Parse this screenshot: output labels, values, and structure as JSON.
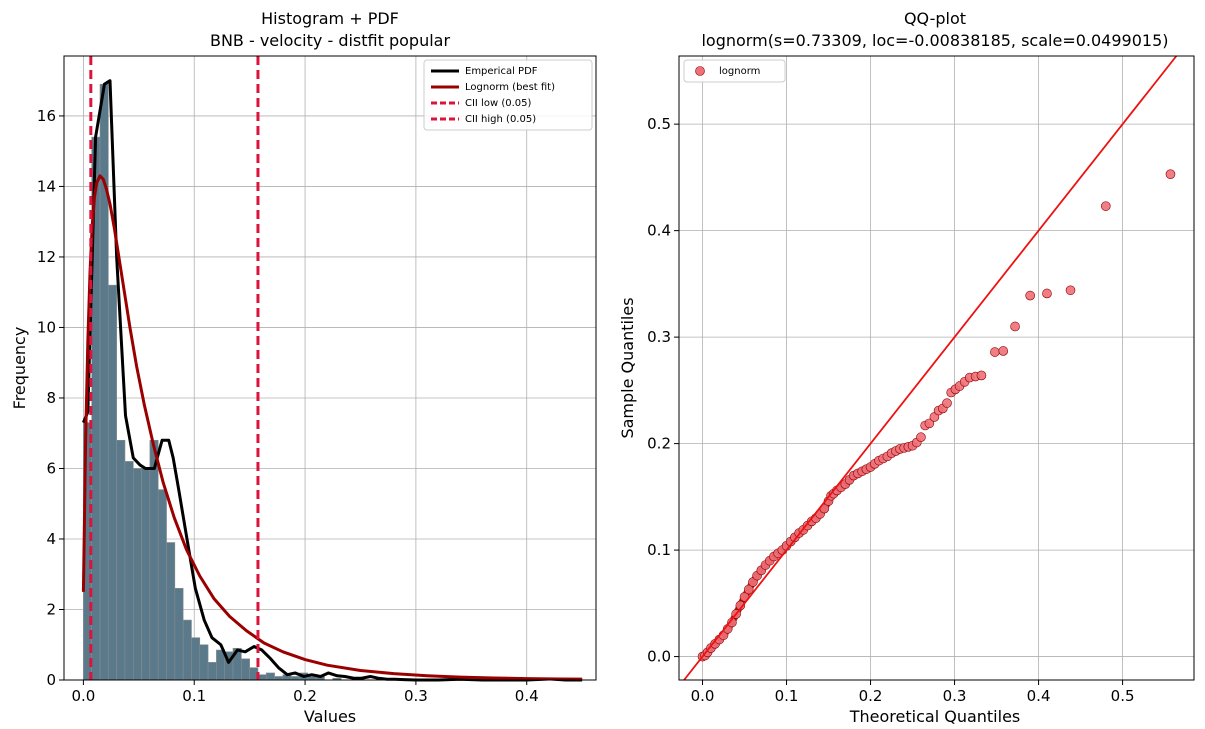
{
  "chart_data": [
    {
      "type": "bar",
      "title": "Histogram + PDF",
      "subtitle": "BNB - velocity - distfit popular",
      "xlabel": "Values",
      "ylabel": "Frequency",
      "xlim": [
        -0.0175,
        0.4625
      ],
      "ylim": [
        0,
        17.7
      ],
      "x_ticks": [
        0.0,
        0.1,
        0.2,
        0.3,
        0.4
      ],
      "x_tick_labels": [
        "0.0",
        "0.1",
        "0.2",
        "0.3",
        "0.4"
      ],
      "y_ticks": [
        0,
        2,
        4,
        6,
        8,
        10,
        12,
        14,
        16
      ],
      "y_tick_labels": [
        "0",
        "2",
        "4",
        "6",
        "8",
        "10",
        "12",
        "14",
        "16"
      ],
      "grid": true,
      "legend_position": "top-right",
      "colors": {
        "histogram_fill": "#5a7a8c",
        "histogram_edge": "#8a8a8a",
        "empirical_pdf": "#000000",
        "lognorm_fit": "#9a0000",
        "cii": "#dc143c"
      },
      "histogram": {
        "bin_width": 0.0075,
        "bin_starts": [
          0.0,
          0.0075,
          0.015,
          0.0225,
          0.03,
          0.0375,
          0.045,
          0.0525,
          0.06,
          0.0675,
          0.075,
          0.0825,
          0.09,
          0.0975,
          0.105,
          0.1125,
          0.12,
          0.1275,
          0.135,
          0.1425,
          0.15,
          0.1575,
          0.165,
          0.1725,
          0.18,
          0.1875,
          0.195,
          0.2025,
          0.21,
          0.2175,
          0.225,
          0.2325,
          0.24,
          0.2475,
          0.255,
          0.2625,
          0.27,
          0.2775,
          0.285,
          0.2925,
          0.3,
          0.3075,
          0.315,
          0.3225,
          0.33,
          0.3375,
          0.345,
          0.3525,
          0.36,
          0.3675,
          0.375,
          0.3825,
          0.39,
          0.3975,
          0.405,
          0.4125,
          0.42,
          0.4275,
          0.435,
          0.4425
        ],
        "values": [
          7.3,
          15.4,
          16.9,
          11.2,
          6.8,
          6.2,
          6.0,
          6.0,
          6.8,
          5.4,
          3.9,
          2.6,
          1.7,
          1.2,
          1.0,
          0.5,
          0.85,
          0.8,
          0.9,
          0.6,
          0.35,
          0.15,
          0.2,
          0.1,
          0.15,
          0.1,
          0.2,
          0.1,
          0.1,
          0.0,
          0.05,
          0.0,
          0.0,
          0.0,
          0.0,
          0.0,
          0.0,
          0.0,
          0.0,
          0.0,
          0.0,
          0.0,
          0.0,
          0.0,
          0.05,
          0.0,
          0.0,
          0.0,
          0.0,
          0.0,
          0.0,
          0.0,
          0.0,
          0.0,
          0.0,
          0.0,
          0.05,
          0.0,
          0.0,
          0.0
        ]
      },
      "series": [
        {
          "name": "Emperical PDF",
          "x": [
            0.0,
            0.004,
            0.011,
            0.019,
            0.024,
            0.03,
            0.038,
            0.045,
            0.051,
            0.056,
            0.064,
            0.071,
            0.077,
            0.081,
            0.086,
            0.094,
            0.101,
            0.109,
            0.116,
            0.124,
            0.131,
            0.139,
            0.146,
            0.154,
            0.161,
            0.169,
            0.176,
            0.184,
            0.191,
            0.199,
            0.206,
            0.214,
            0.221,
            0.229,
            0.236,
            0.244,
            0.251,
            0.259,
            0.266,
            0.274,
            0.281,
            0.289,
            0.3,
            0.32,
            0.34,
            0.36,
            0.38,
            0.4,
            0.42,
            0.435,
            0.45
          ],
          "y": [
            7.3,
            7.6,
            15.4,
            16.9,
            17.0,
            12.0,
            7.5,
            6.3,
            6.1,
            6.0,
            6.0,
            6.8,
            6.8,
            6.3,
            5.4,
            3.9,
            2.6,
            1.7,
            1.2,
            1.0,
            0.5,
            0.85,
            0.8,
            0.95,
            0.85,
            0.6,
            0.35,
            0.15,
            0.2,
            0.1,
            0.15,
            0.1,
            0.2,
            0.12,
            0.1,
            0.05,
            0.05,
            0.1,
            0.05,
            0.02,
            0.02,
            0.01,
            0.0,
            0.0,
            0.02,
            0.0,
            0.0,
            0.0,
            0.03,
            0.0,
            0.0
          ]
        },
        {
          "name": "Lognorm (best fit)",
          "x": [
            0.0,
            0.002,
            0.004,
            0.006,
            0.008,
            0.01,
            0.012,
            0.015,
            0.018,
            0.021,
            0.024,
            0.028,
            0.032,
            0.037,
            0.042,
            0.048,
            0.055,
            0.063,
            0.072,
            0.082,
            0.093,
            0.105,
            0.118,
            0.132,
            0.147,
            0.163,
            0.18,
            0.2,
            0.22,
            0.25,
            0.28,
            0.31,
            0.34,
            0.37,
            0.4,
            0.43,
            0.45
          ],
          "y": [
            2.5,
            6.8,
            9.6,
            11.6,
            12.9,
            13.7,
            14.1,
            14.3,
            14.2,
            13.9,
            13.5,
            12.8,
            12.0,
            11.0,
            10.0,
            8.9,
            7.8,
            6.7,
            5.6,
            4.6,
            3.7,
            2.95,
            2.3,
            1.8,
            1.4,
            1.05,
            0.8,
            0.58,
            0.42,
            0.27,
            0.18,
            0.12,
            0.08,
            0.055,
            0.04,
            0.03,
            0.025
          ]
        },
        {
          "name": "CII low (0.05)",
          "x_value": 0.0067
        },
        {
          "name": "CII high (0.05)",
          "x_value": 0.1575
        }
      ]
    },
    {
      "type": "scatter",
      "title": "QQ-plot",
      "subtitle": "lognorm(s=0.73309, loc=-0.00838185, scale=0.0499015)",
      "xlabel": "Theoretical Quantiles",
      "ylabel": "Sample Quantiles",
      "xlim": [
        -0.028,
        0.585
      ],
      "ylim": [
        -0.022,
        0.564
      ],
      "x_ticks": [
        0.0,
        0.1,
        0.2,
        0.3,
        0.4,
        0.5
      ],
      "x_tick_labels": [
        "0.0",
        "0.1",
        "0.2",
        "0.3",
        "0.4",
        "0.5"
      ],
      "y_ticks": [
        0.0,
        0.1,
        0.2,
        0.3,
        0.4,
        0.5
      ],
      "y_tick_labels": [
        "0.0",
        "0.1",
        "0.2",
        "0.3",
        "0.4",
        "0.5"
      ],
      "grid": true,
      "legend_position": "top-left",
      "colors": {
        "marker_fill": "#f07078",
        "marker_edge": "#8b0000",
        "reference_line": "#ee1111",
        "dense_fill": "#b02020"
      },
      "reference_line": {
        "name": "y = x",
        "slope": 1,
        "intercept": 0
      },
      "series": [
        {
          "name": "lognorm",
          "points": [
            [
              0.0,
              0.0
            ],
            [
              0.003,
              0.001
            ],
            [
              0.006,
              0.004
            ],
            [
              0.01,
              0.008
            ],
            [
              0.015,
              0.012
            ],
            [
              0.02,
              0.016
            ],
            [
              0.025,
              0.02
            ],
            [
              0.03,
              0.026
            ],
            [
              0.035,
              0.032
            ],
            [
              0.04,
              0.04
            ],
            [
              0.045,
              0.048
            ],
            [
              0.05,
              0.056
            ],
            [
              0.055,
              0.063
            ],
            [
              0.06,
              0.07
            ],
            [
              0.065,
              0.076
            ],
            [
              0.07,
              0.081
            ],
            [
              0.075,
              0.086
            ],
            [
              0.08,
              0.09
            ],
            [
              0.085,
              0.094
            ],
            [
              0.09,
              0.097
            ],
            [
              0.095,
              0.1
            ],
            [
              0.1,
              0.104
            ],
            [
              0.105,
              0.108
            ],
            [
              0.11,
              0.112
            ],
            [
              0.115,
              0.116
            ],
            [
              0.12,
              0.119
            ],
            [
              0.125,
              0.123
            ],
            [
              0.13,
              0.127
            ],
            [
              0.135,
              0.13
            ],
            [
              0.14,
              0.134
            ],
            [
              0.145,
              0.139
            ],
            [
              0.15,
              0.146
            ],
            [
              0.153,
              0.151
            ],
            [
              0.156,
              0.153
            ],
            [
              0.16,
              0.156
            ],
            [
              0.165,
              0.159
            ],
            [
              0.17,
              0.162
            ],
            [
              0.175,
              0.166
            ],
            [
              0.18,
              0.17
            ],
            [
              0.185,
              0.172
            ],
            [
              0.19,
              0.174
            ],
            [
              0.195,
              0.176
            ],
            [
              0.2,
              0.178
            ],
            [
              0.205,
              0.181
            ],
            [
              0.21,
              0.184
            ],
            [
              0.215,
              0.186
            ],
            [
              0.22,
              0.188
            ],
            [
              0.225,
              0.191
            ],
            [
              0.23,
              0.193
            ],
            [
              0.235,
              0.195
            ],
            [
              0.24,
              0.196
            ],
            [
              0.245,
              0.197
            ],
            [
              0.25,
              0.198
            ],
            [
              0.255,
              0.201
            ],
            [
              0.26,
              0.206
            ],
            [
              0.265,
              0.217
            ],
            [
              0.27,
              0.219
            ],
            [
              0.276,
              0.225
            ],
            [
              0.281,
              0.231
            ],
            [
              0.286,
              0.233
            ],
            [
              0.291,
              0.238
            ],
            [
              0.296,
              0.248
            ],
            [
              0.301,
              0.251
            ],
            [
              0.306,
              0.254
            ],
            [
              0.312,
              0.258
            ],
            [
              0.318,
              0.262
            ],
            [
              0.325,
              0.263
            ],
            [
              0.332,
              0.264
            ],
            [
              0.348,
              0.286
            ],
            [
              0.358,
              0.287
            ],
            [
              0.372,
              0.31
            ],
            [
              0.39,
              0.339
            ],
            [
              0.41,
              0.341
            ],
            [
              0.438,
              0.344
            ],
            [
              0.48,
              0.423
            ],
            [
              0.557,
              0.453
            ]
          ]
        }
      ]
    }
  ]
}
